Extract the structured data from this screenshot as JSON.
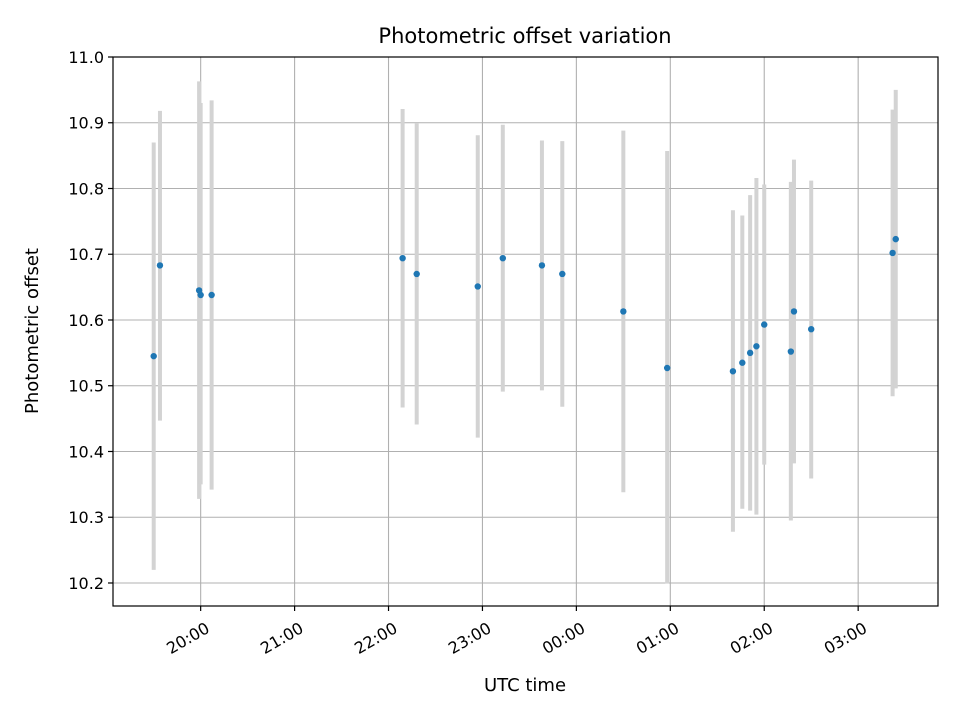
{
  "chart_data": {
    "type": "scatter",
    "title": "Photometric offset variation",
    "xlabel": "UTC time",
    "ylabel": "Photometric offset",
    "x_unit": "UTC time",
    "xlim": [
      "19:04",
      "03:51"
    ],
    "ylim": [
      10.165,
      11.0
    ],
    "grid": true,
    "y_ticks": [
      "10.2",
      "10.3",
      "10.4",
      "10.5",
      "10.6",
      "10.7",
      "10.8",
      "10.9",
      "11.0"
    ],
    "x_ticks": [
      "20:00",
      "21:00",
      "22:00",
      "23:00",
      "00:00",
      "01:00",
      "02:00",
      "03:00"
    ],
    "series": [
      {
        "marker_color": "#1f77b4",
        "errorbar_color": "#d3d3d3",
        "points": [
          {
            "x": "19:30",
            "y": 10.545,
            "low": 10.22,
            "high": 10.87
          },
          {
            "x": "19:34",
            "y": 10.683,
            "low": 10.447,
            "high": 10.918
          },
          {
            "x": "19:59",
            "y": 10.645,
            "low": 10.328,
            "high": 10.963
          },
          {
            "x": "20:00",
            "y": 10.638,
            "low": 10.35,
            "high": 10.93
          },
          {
            "x": "20:07",
            "y": 10.638,
            "low": 10.342,
            "high": 10.934
          },
          {
            "x": "22:09",
            "y": 10.694,
            "low": 10.467,
            "high": 10.921
          },
          {
            "x": "22:18",
            "y": 10.67,
            "low": 10.441,
            "high": 10.899
          },
          {
            "x": "22:57",
            "y": 10.651,
            "low": 10.421,
            "high": 10.881
          },
          {
            "x": "23:13",
            "y": 10.694,
            "low": 10.491,
            "high": 10.897
          },
          {
            "x": "23:38",
            "y": 10.683,
            "low": 10.493,
            "high": 10.873
          },
          {
            "x": "23:51",
            "y": 10.67,
            "low": 10.468,
            "high": 10.872
          },
          {
            "x": "00:30",
            "y": 10.613,
            "low": 10.338,
            "high": 10.888
          },
          {
            "x": "00:58",
            "y": 10.527,
            "low": 10.199,
            "high": 10.857
          },
          {
            "x": "01:40",
            "y": 10.522,
            "low": 10.278,
            "high": 10.767
          },
          {
            "x": "01:46",
            "y": 10.535,
            "low": 10.313,
            "high": 10.759
          },
          {
            "x": "01:51",
            "y": 10.55,
            "low": 10.31,
            "high": 10.79
          },
          {
            "x": "01:55",
            "y": 10.56,
            "low": 10.304,
            "high": 10.816
          },
          {
            "x": "02:00",
            "y": 10.593,
            "low": 10.38,
            "high": 10.806
          },
          {
            "x": "02:17",
            "y": 10.552,
            "low": 10.295,
            "high": 10.81
          },
          {
            "x": "02:19",
            "y": 10.613,
            "low": 10.382,
            "high": 10.844
          },
          {
            "x": "02:30",
            "y": 10.586,
            "low": 10.359,
            "high": 10.812
          },
          {
            "x": "03:22",
            "y": 10.702,
            "low": 10.484,
            "high": 10.92
          },
          {
            "x": "03:24",
            "y": 10.723,
            "low": 10.496,
            "high": 10.95
          }
        ]
      }
    ]
  }
}
